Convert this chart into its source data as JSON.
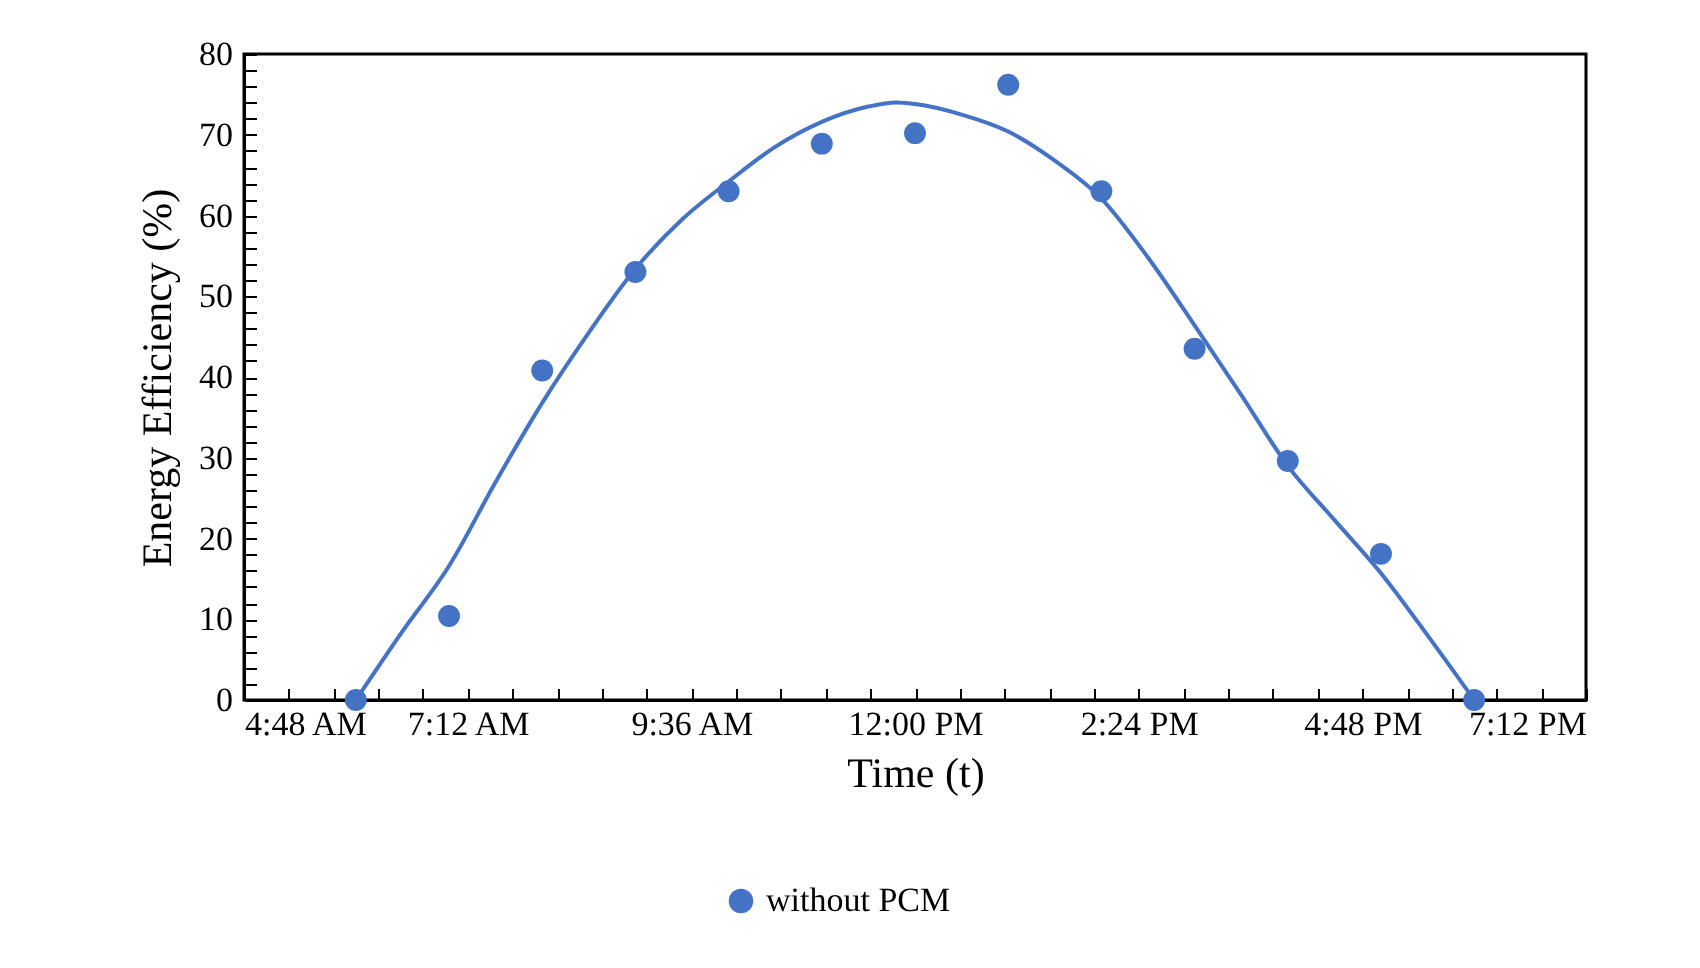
{
  "chart_data": {
    "type": "scatter",
    "xlabel": "Time (t)",
    "ylabel": "Energy Efficiency  (%)",
    "xlim": [
      4.8,
      19.2
    ],
    "xticks": [
      {
        "value": 4.8,
        "label": "4:48 AM"
      },
      {
        "value": 5.28,
        "label": null
      },
      {
        "value": 5.76,
        "label": null
      },
      {
        "value": 6.24,
        "label": null
      },
      {
        "value": 6.72,
        "label": null
      },
      {
        "value": 7.2,
        "label": "7:12 AM"
      },
      {
        "value": 7.68,
        "label": null
      },
      {
        "value": 8.16,
        "label": null
      },
      {
        "value": 8.64,
        "label": null
      },
      {
        "value": 9.12,
        "label": null
      },
      {
        "value": 9.6,
        "label": "9:36 AM"
      },
      {
        "value": 10.08,
        "label": null
      },
      {
        "value": 10.56,
        "label": null
      },
      {
        "value": 11.04,
        "label": null
      },
      {
        "value": 11.52,
        "label": null
      },
      {
        "value": 12,
        "label": "12:00 PM"
      },
      {
        "value": 12.48,
        "label": null
      },
      {
        "value": 12.96,
        "label": null
      },
      {
        "value": 13.44,
        "label": null
      },
      {
        "value": 13.92,
        "label": null
      },
      {
        "value": 14.4,
        "label": "2:24 PM"
      },
      {
        "value": 14.88,
        "label": null
      },
      {
        "value": 15.36,
        "label": null
      },
      {
        "value": 15.84,
        "label": null
      },
      {
        "value": 16.32,
        "label": null
      },
      {
        "value": 16.8,
        "label": "4:48 PM"
      },
      {
        "value": 17.28,
        "label": null
      },
      {
        "value": 17.76,
        "label": null
      },
      {
        "value": 18.24,
        "label": null
      },
      {
        "value": 18.72,
        "label": null
      },
      {
        "value": 19.2,
        "label": "7:12 PM"
      }
    ],
    "ylim": [
      0,
      80
    ],
    "yticks": [
      0,
      {
        "value": 2,
        "label": null
      },
      {
        "value": 4,
        "label": null
      },
      {
        "value": 6,
        "label": null
      },
      {
        "value": 8,
        "label": null
      },
      10,
      {
        "value": 12,
        "label": null
      },
      {
        "value": 14,
        "label": null
      },
      {
        "value": 16,
        "label": null
      },
      {
        "value": 18,
        "label": null
      },
      20,
      {
        "value": 22,
        "label": null
      },
      {
        "value": 24,
        "label": null
      },
      {
        "value": 26,
        "label": null
      },
      {
        "value": 28,
        "label": null
      },
      30,
      {
        "value": 32,
        "label": null
      },
      {
        "value": 34,
        "label": null
      },
      {
        "value": 36,
        "label": null
      },
      {
        "value": 38,
        "label": null
      },
      40,
      {
        "value": 42,
        "label": null
      },
      {
        "value": 44,
        "label": null
      },
      {
        "value": 46,
        "label": null
      },
      {
        "value": 48,
        "label": null
      },
      50,
      {
        "value": 52,
        "label": null
      },
      {
        "value": 54,
        "label": null
      },
      {
        "value": 56,
        "label": null
      },
      {
        "value": 58,
        "label": null
      },
      60,
      {
        "value": 62,
        "label": null
      },
      {
        "value": 64,
        "label": null
      },
      {
        "value": 66,
        "label": null
      },
      {
        "value": 68,
        "label": null
      },
      70,
      {
        "value": 72,
        "label": null
      },
      {
        "value": 74,
        "label": null
      },
      {
        "value": 76,
        "label": null
      },
      {
        "value": 78,
        "label": null
      },
      80
    ],
    "grid": false,
    "legend": "bottom",
    "marker": "circle",
    "series": [
      {
        "name": "without PCM",
        "color": "#4472c4",
        "x": [
          6,
          7,
          8,
          9,
          10,
          11,
          12,
          13,
          14,
          15,
          16,
          17,
          18
        ],
        "values": [
          0,
          10.4,
          40.8,
          53,
          63,
          68.9,
          70.2,
          76.2,
          63,
          43.5,
          29.6,
          18.1,
          0
        ]
      },
      {
        "type": "line",
        "color": "#4472c4",
        "marker": "none",
        "line_style": "solid",
        "x": [
          6,
          6.5,
          7,
          7.5,
          8,
          8.5,
          9,
          9.5,
          10,
          10.5,
          11,
          11.5,
          11.8,
          12,
          12.5,
          13,
          13.5,
          14,
          14.5,
          15,
          15.5,
          16,
          16.5,
          17,
          17.5,
          18
        ],
        "values": [
          0,
          8.5,
          16.6,
          27,
          36.8,
          45.5,
          53.4,
          59.5,
          64.2,
          68.5,
          71.6,
          73.5,
          74,
          73.8,
          72.5,
          70.4,
          66.8,
          62.1,
          54.8,
          46.4,
          37.8,
          29,
          22.3,
          15.7,
          8,
          0
        ]
      }
    ]
  }
}
